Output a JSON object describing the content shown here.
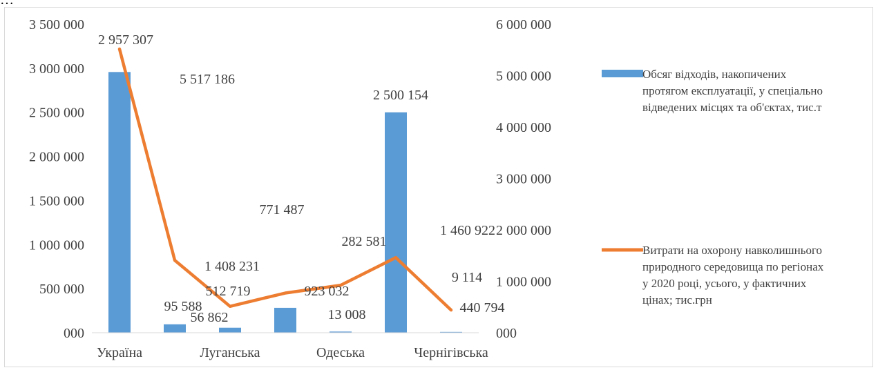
{
  "header_text_cropped": "…",
  "chart_data": {
    "type": "bar+line",
    "title": "",
    "categories": [
      "Україна",
      "",
      "Луганська",
      "",
      "Одеська",
      "",
      "Чернігівська"
    ],
    "xtick_labels": [
      "Україна",
      "Луганська",
      "Одеська",
      "Чернігівська"
    ],
    "y_left": {
      "min": 0,
      "max": 3500000,
      "tick_labels": [
        "000",
        "500 000",
        "1 000 000",
        "1 500 000",
        "2 000 000",
        "2 500 000",
        "3 000 000",
        "3 500 000"
      ]
    },
    "y_right": {
      "min": 0,
      "max": 6000000,
      "tick_labels": [
        "000",
        "1 000 000",
        "2 000 000",
        "3 000 000",
        "4 000 000",
        "5 000 000",
        "6 000 000"
      ]
    },
    "grid": false,
    "legend_position": "right",
    "series": [
      {
        "name": "Обсяг відходів, накопичених протягом експлуатації, у спеціально відведених місцях та об'єктах, тис.т",
        "legend_lines": [
          "Обсяг відходів, накопичених",
          "протягом експлуатації, у спеціально",
          "відведених місцях та об'єктах, тис.т"
        ],
        "type": "bar",
        "axis": "left",
        "color": "#5b9bd5",
        "values": [
          2957307,
          95588,
          56862,
          282581,
          13008,
          2500154,
          9114
        ],
        "labels": [
          "2 957 307",
          "95 588",
          "56 862",
          "282 581",
          "13 008",
          "2 500 154",
          "9 114"
        ]
      },
      {
        "name": "Витрати на охорону навколишнього природного середовища по регіонах у 2020 році, усього, у фактичних цінах; тис.грн",
        "legend_lines": [
          "Витрати на охорону навколишнього",
          "природного середовища по регіонах",
          "у 2020 році, усього, у фактичних",
          "цінах; тис.грн"
        ],
        "type": "line",
        "axis": "right",
        "color": "#ed7d31",
        "values": [
          5517186,
          1408231,
          512719,
          771487,
          923032,
          1460922,
          440794
        ],
        "labels": [
          "5 517 186",
          "1 408 231",
          "512 719",
          "771 487",
          "923 032",
          "1 460 922",
          "440 794"
        ]
      }
    ]
  }
}
